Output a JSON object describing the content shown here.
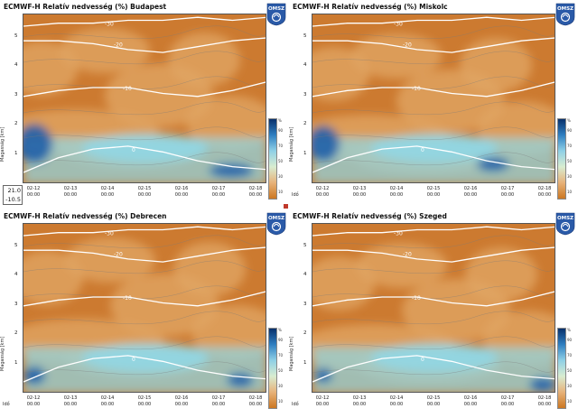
{
  "colors": {
    "background_dry": "#cc7a30",
    "background_mid": "#e2a766",
    "moist": "#8fd8e8",
    "very_moist": "#1e5fa8",
    "contour_white": "#ffffff",
    "contour_gray": "#7a7a7a"
  },
  "panels": [
    {
      "title": "ECMWF-H Relatív nedvesség (%) Budapest",
      "logo": "OMSZ"
    },
    {
      "title": "ECMWF-H Relatív nedvesség (%) Miskolc",
      "logo": "OMSZ"
    },
    {
      "title": "ECMWF-H Relatív nedvesség (%) Debrecen",
      "logo": "OMSZ"
    },
    {
      "title": "ECMWF-H Relatív nedvesség (%) Szeged",
      "logo": "OMSZ"
    }
  ],
  "axes": {
    "ylabel": "Magasság [km]",
    "yticks": [
      "1",
      "2",
      "3",
      "4",
      "5"
    ],
    "xticks": [
      {
        "date": "02-12",
        "time": "00:00"
      },
      {
        "date": "02-13",
        "time": "00:00"
      },
      {
        "date": "02-14",
        "time": "00:00"
      },
      {
        "date": "02-15",
        "time": "00:00"
      },
      {
        "date": "02-16",
        "time": "00:00"
      },
      {
        "date": "02-17",
        "time": "00:00"
      },
      {
        "date": "02-18",
        "time": "00:00"
      }
    ],
    "time_label": "Idő"
  },
  "colorbar": {
    "unit": "%",
    "ticks": [
      "90",
      "70",
      "50",
      "30",
      "10"
    ]
  },
  "contour_labels": [
    "-30",
    "-20",
    "-10",
    "0"
  ],
  "readout": {
    "line1": "21.0",
    "line2": "-10.5"
  },
  "chart_data": [
    {
      "type": "heatmap",
      "title": "ECMWF-H Relatív nedvesség (%) Budapest",
      "ylabel": "Magasság [km]",
      "x": [
        "02-12 00:00",
        "02-13 00:00",
        "02-14 00:00",
        "02-15 00:00",
        "02-16 00:00",
        "02-17 00:00",
        "02-18 00:00"
      ],
      "ylim": [
        0,
        5.8
      ],
      "zlim": [
        10,
        100
      ],
      "temperature_isotherms_C": [
        -30,
        -20,
        -10,
        0
      ]
    },
    {
      "type": "heatmap",
      "title": "ECMWF-H Relatív nedvesség (%) Miskolc",
      "ylabel": "Magasság [km]",
      "x": [
        "02-12 00:00",
        "02-13 00:00",
        "02-14 00:00",
        "02-15 00:00",
        "02-16 00:00",
        "02-17 00:00",
        "02-18 00:00"
      ],
      "ylim": [
        0,
        5.8
      ],
      "zlim": [
        10,
        100
      ],
      "temperature_isotherms_C": [
        -30,
        -20,
        -10,
        0
      ]
    },
    {
      "type": "heatmap",
      "title": "ECMWF-H Relatív nedvesség (%) Debrecen",
      "ylabel": "Magasság [km]",
      "x": [
        "02-12 00:00",
        "02-13 00:00",
        "02-14 00:00",
        "02-15 00:00",
        "02-16 00:00",
        "02-17 00:00",
        "02-18 00:00"
      ],
      "ylim": [
        0,
        5.8
      ],
      "zlim": [
        10,
        100
      ],
      "temperature_isotherms_C": [
        -30,
        -20,
        -10,
        0
      ]
    },
    {
      "type": "heatmap",
      "title": "ECMWF-H Relatív nedvesség (%) Szeged",
      "ylabel": "Magasság [km]",
      "x": [
        "02-12 00:00",
        "02-13 00:00",
        "02-14 00:00",
        "02-15 00:00",
        "02-16 00:00",
        "02-17 00:00",
        "02-18 00:00"
      ],
      "ylim": [
        0,
        5.8
      ],
      "zlim": [
        10,
        100
      ],
      "temperature_isotherms_C": [
        -30,
        -20,
        -10,
        0
      ]
    }
  ]
}
